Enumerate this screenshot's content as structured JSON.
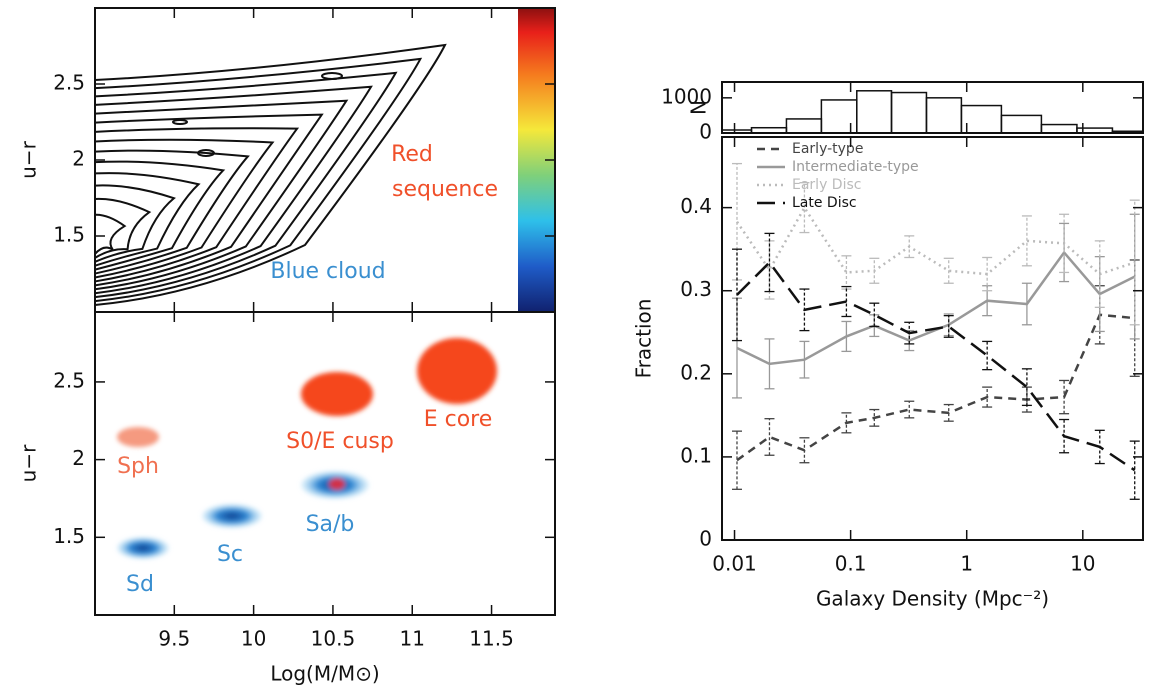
{
  "chart_data": [
    {
      "type": "contour",
      "ylabel": "u−r",
      "xlim": [
        9.0,
        11.9
      ],
      "ylim": [
        1.0,
        3.0
      ],
      "yticks": [
        1.5,
        2,
        2.5
      ],
      "annotations": [
        "Red",
        "sequence",
        "Blue cloud"
      ],
      "colorbar": true
    },
    {
      "type": "blobs",
      "ylabel": "u−r",
      "xlabel": "Log(M/M⊙)",
      "xlim": [
        9.0,
        11.9
      ],
      "ylim": [
        1.0,
        2.95
      ],
      "xticks": [
        9.5,
        10,
        10.5,
        11,
        11.5
      ],
      "yticks": [
        1.5,
        2,
        2.5
      ],
      "labels": [
        "Sph",
        "S0/E cusp",
        "E core",
        "Sd",
        "Sc",
        "Sa/b"
      ]
    },
    {
      "type": "histogram",
      "ylabel": "N",
      "xscale": "log",
      "xlim": [
        0.0078,
        33
      ],
      "ylim": [
        0,
        1450
      ],
      "yticks": [
        0,
        1000
      ],
      "bins": [
        0.0078,
        0.014,
        0.028,
        0.056,
        0.113,
        0.225,
        0.45,
        0.9,
        1.99,
        4.4,
        8.9,
        18,
        33
      ],
      "counts": [
        85,
        150,
        400,
        940,
        1200,
        1150,
        1000,
        780,
        500,
        240,
        140,
        50
      ],
      "color": "#111111"
    },
    {
      "type": "line",
      "xlabel": "Galaxy Density (Mpc⁻²)",
      "ylabel": "Fraction",
      "xscale": "log",
      "xlim": [
        0.0078,
        33
      ],
      "xticks": [
        0.01,
        0.1,
        1,
        10
      ],
      "ylim": [
        0,
        0.485
      ],
      "yticks": [
        0,
        0.1,
        0.2,
        0.3,
        0.4
      ],
      "x": [
        0.0105,
        0.02,
        0.04,
        0.092,
        0.16,
        0.32,
        0.7,
        1.5,
        3.3,
        6.9,
        14,
        28
      ],
      "series": [
        {
          "name": "Early-type",
          "color": "#444444",
          "linestyle": "dashed",
          "values": [
            0.096,
            0.124,
            0.108,
            0.141,
            0.147,
            0.157,
            0.153,
            0.172,
            0.169,
            0.172,
            0.271,
            0.267
          ],
          "errors": [
            0.035,
            0.022,
            0.015,
            0.012,
            0.01,
            0.01,
            0.01,
            0.012,
            0.015,
            0.02,
            0.035,
            0.07
          ]
        },
        {
          "name": "Intermediate-type",
          "color": "#999999",
          "linestyle": "solid",
          "values": [
            0.231,
            0.212,
            0.217,
            0.245,
            0.258,
            0.24,
            0.259,
            0.288,
            0.284,
            0.346,
            0.296,
            0.317
          ],
          "errors": [
            0.06,
            0.03,
            0.022,
            0.018,
            0.013,
            0.012,
            0.013,
            0.018,
            0.025,
            0.035,
            0.045,
            0.075
          ]
        },
        {
          "name": "Early Disc",
          "color": "#bbbbbb",
          "linestyle": "dotted",
          "values": [
            0.383,
            0.325,
            0.4,
            0.322,
            0.324,
            0.353,
            0.324,
            0.32,
            0.36,
            0.357,
            0.32,
            0.334
          ],
          "errors": [
            0.07,
            0.035,
            0.03,
            0.02,
            0.015,
            0.013,
            0.015,
            0.02,
            0.03,
            0.035,
            0.04,
            0.075
          ]
        },
        {
          "name": "Late Disc",
          "color": "#111111",
          "linestyle": "longdash",
          "values": [
            0.295,
            0.334,
            0.277,
            0.287,
            0.271,
            0.249,
            0.257,
            0.222,
            0.184,
            0.125,
            0.112,
            0.084
          ],
          "errors": [
            0.055,
            0.035,
            0.025,
            0.018,
            0.014,
            0.013,
            0.013,
            0.017,
            0.022,
            0.02,
            0.02,
            0.035
          ]
        }
      ]
    }
  ]
}
